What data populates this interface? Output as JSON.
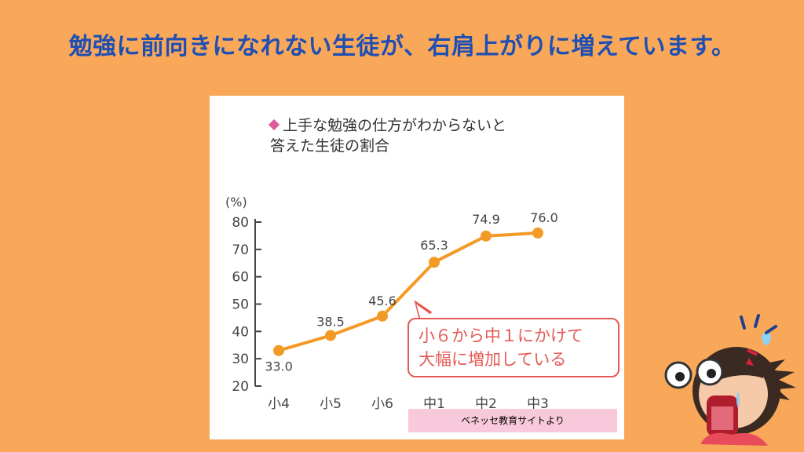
{
  "headline": "勉強に前向きになれない生徒が、右肩上がりに増えています。",
  "colors": {
    "background": "#F9A85A",
    "headline": "#1F4FB3",
    "line": "#F39A26",
    "callout": "#E45A55",
    "diamond": "#E05B9A",
    "source_bg": "#F7C9DA"
  },
  "chart_data": {
    "type": "line",
    "title_line1": "上手な勉強の仕方がわからないと",
    "title_line2": "答えた生徒の割合",
    "ylabel": "(%)",
    "ylim": [
      20,
      80
    ],
    "yticks": [
      20,
      30,
      40,
      50,
      60,
      70,
      80
    ],
    "categories": [
      "小4",
      "小5",
      "小6",
      "中1",
      "中2",
      "中3"
    ],
    "values": [
      33.0,
      38.5,
      45.6,
      65.3,
      74.9,
      76.0
    ],
    "value_labels": [
      "33.0",
      "38.5",
      "45.6",
      "65.3",
      "74.9",
      "76.0"
    ],
    "annotation_line1": "小６から中１にかけて",
    "annotation_line2": "大幅に増加している",
    "source": "ベネッセ教育サイトより"
  }
}
